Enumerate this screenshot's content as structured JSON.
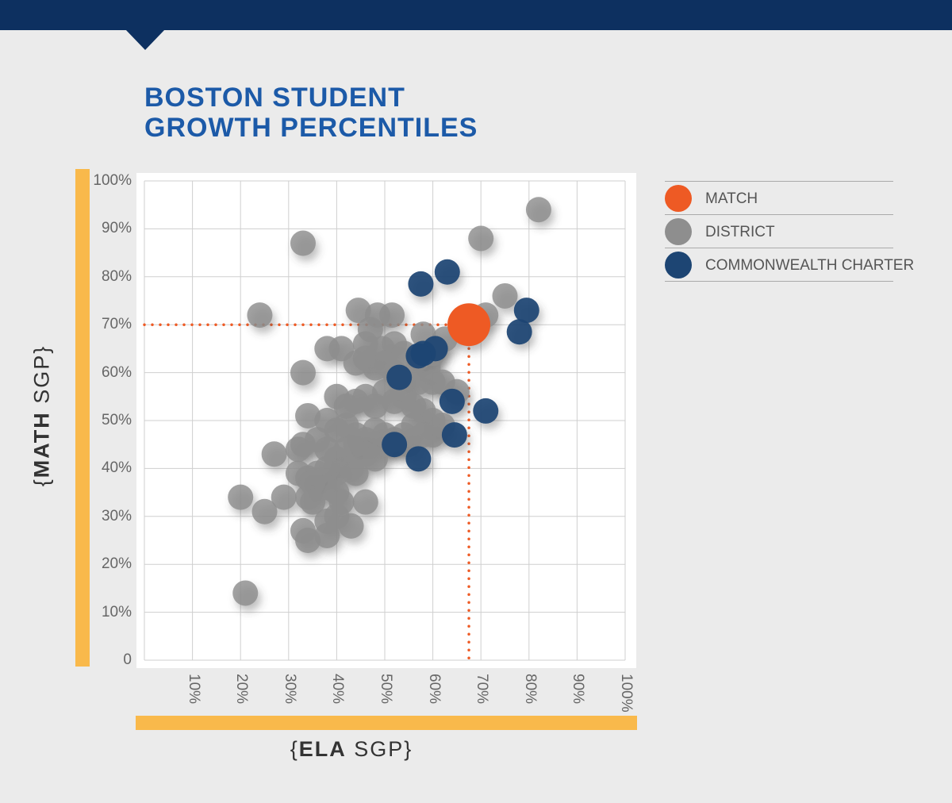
{
  "title_lines": [
    "BOSTON STUDENT",
    "GROWTH PERCENTILES"
  ],
  "colors": {
    "header": "#0d3060",
    "title": "#1c5aa8",
    "accent_bar": "#f9b94b",
    "match": "#ee5a24",
    "district": "#8e8e8e",
    "charter": "#1d4573",
    "guide": "#ee5a24"
  },
  "legend": [
    {
      "key": "match",
      "label": "MATCH"
    },
    {
      "key": "district",
      "label": "DISTRICT"
    },
    {
      "key": "charter",
      "label": "COMMONWEALTH CHARTER"
    }
  ],
  "axis_labels": {
    "y_bold": "MATH",
    "y_rest": "SGP",
    "x_bold": "ELA",
    "x_rest": "SGP",
    "open": "{",
    "close": "}"
  },
  "chart_data": {
    "type": "scatter",
    "title": "BOSTON STUDENT GROWTH PERCENTILES",
    "xlabel": "{ELA SGP}",
    "ylabel": "{MATH SGP}",
    "xlim": [
      0,
      100
    ],
    "ylim": [
      0,
      100
    ],
    "grid": true,
    "legend_position": "right",
    "y_ticks": [
      "0",
      "10%",
      "20%",
      "30%",
      "40%",
      "50%",
      "60%",
      "70%",
      "80%",
      "90%",
      "100%"
    ],
    "x_ticks": [
      "10%",
      "20%",
      "30%",
      "40%",
      "50%",
      "60%",
      "70%",
      "80%",
      "90%",
      "100%"
    ],
    "guide_point": {
      "x": 67.5,
      "y": 70
    },
    "series": [
      {
        "name": "DISTRICT",
        "points": [
          [
            33,
            87
          ],
          [
            70,
            88
          ],
          [
            82,
            94
          ],
          [
            24,
            72
          ],
          [
            44.5,
            73
          ],
          [
            48.5,
            72
          ],
          [
            51.5,
            72
          ],
          [
            71,
            72
          ],
          [
            75,
            76
          ],
          [
            47,
            69
          ],
          [
            38,
            65
          ],
          [
            41,
            65
          ],
          [
            46,
            66
          ],
          [
            49.5,
            65
          ],
          [
            52,
            66
          ],
          [
            54,
            64
          ],
          [
            57,
            63
          ],
          [
            59,
            61
          ],
          [
            62.5,
            67
          ],
          [
            33,
            60
          ],
          [
            44,
            62
          ],
          [
            46,
            63
          ],
          [
            48,
            61
          ],
          [
            50,
            62
          ],
          [
            52,
            60
          ],
          [
            55,
            59
          ],
          [
            57,
            58
          ],
          [
            60,
            58
          ],
          [
            62,
            58
          ],
          [
            65,
            56
          ],
          [
            40,
            55
          ],
          [
            42,
            53
          ],
          [
            44,
            54
          ],
          [
            46,
            55
          ],
          [
            48,
            53
          ],
          [
            50,
            56
          ],
          [
            52,
            54
          ],
          [
            54,
            55
          ],
          [
            56,
            53
          ],
          [
            58,
            52
          ],
          [
            60,
            50
          ],
          [
            62,
            49
          ],
          [
            34,
            51
          ],
          [
            38,
            50
          ],
          [
            40,
            48
          ],
          [
            42,
            49
          ],
          [
            44,
            47
          ],
          [
            46,
            46
          ],
          [
            48,
            48
          ],
          [
            50,
            47
          ],
          [
            52,
            46
          ],
          [
            54,
            47
          ],
          [
            56,
            49
          ],
          [
            58,
            47
          ],
          [
            60,
            47
          ],
          [
            27,
            43
          ],
          [
            32,
            44
          ],
          [
            33,
            45
          ],
          [
            36,
            46
          ],
          [
            38,
            44
          ],
          [
            40,
            42
          ],
          [
            42,
            44
          ],
          [
            44,
            45
          ],
          [
            46,
            43
          ],
          [
            48,
            42
          ],
          [
            50,
            45
          ],
          [
            55,
            45
          ],
          [
            32,
            39
          ],
          [
            34,
            38
          ],
          [
            35,
            37
          ],
          [
            36,
            39
          ],
          [
            38,
            40
          ],
          [
            40,
            39
          ],
          [
            43,
            40
          ],
          [
            44,
            39
          ],
          [
            20,
            34
          ],
          [
            25,
            31
          ],
          [
            29,
            34
          ],
          [
            34,
            34
          ],
          [
            35,
            33
          ],
          [
            38,
            36
          ],
          [
            40,
            35
          ],
          [
            41,
            33
          ],
          [
            46,
            33
          ],
          [
            33,
            27
          ],
          [
            34,
            25
          ],
          [
            38,
            26
          ],
          [
            38,
            29
          ],
          [
            40,
            30
          ],
          [
            43,
            28
          ],
          [
            21,
            14
          ],
          [
            58,
            68
          ],
          [
            60,
            64
          ]
        ]
      },
      {
        "name": "COMMONWEALTH CHARTER",
        "points": [
          [
            57.5,
            78.5
          ],
          [
            63,
            81
          ],
          [
            79.5,
            73
          ],
          [
            78,
            68.5
          ],
          [
            60.5,
            65
          ],
          [
            58,
            64
          ],
          [
            57,
            63.5
          ],
          [
            53,
            59
          ],
          [
            64,
            54
          ],
          [
            71,
            52
          ],
          [
            64.5,
            47
          ],
          [
            52,
            45
          ],
          [
            57,
            42
          ]
        ]
      },
      {
        "name": "MATCH",
        "points": [
          [
            67.5,
            70
          ]
        ]
      }
    ]
  }
}
